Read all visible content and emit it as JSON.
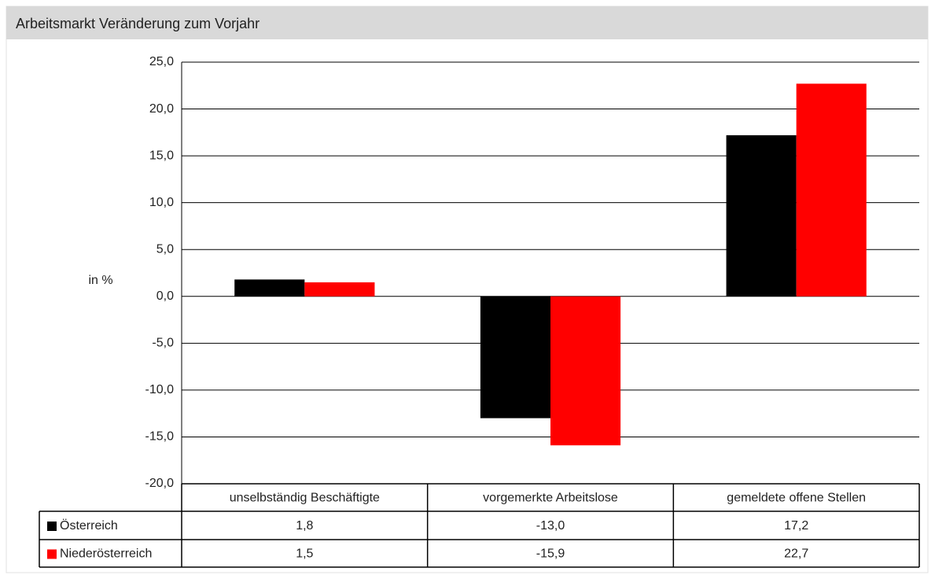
{
  "chart_data": {
    "type": "bar",
    "title": "Arbeitsmarkt Veränderung zum Vorjahr",
    "y_label": "in %",
    "categories": [
      "unselbständig Beschäftigte",
      "vorgemerkte Arbeitslose",
      "gemeldete offene Stellen"
    ],
    "series": [
      {
        "name": "Österreich",
        "color": "#000000",
        "values": [
          1.8,
          -13.0,
          17.2
        ],
        "value_labels": [
          "1,8",
          "-13,0",
          "17,2"
        ]
      },
      {
        "name": "Niederösterreich",
        "color": "#ff0000",
        "values": [
          1.5,
          -15.9,
          22.7
        ],
        "value_labels": [
          "1,5",
          "-15,9",
          "22,7"
        ]
      }
    ],
    "ylim": [
      -20,
      25
    ],
    "yticks": [
      {
        "value": -20,
        "label": "-20,0"
      },
      {
        "value": -15,
        "label": "-15,0"
      },
      {
        "value": -10,
        "label": "-10,0"
      },
      {
        "value": -5,
        "label": "-5,0"
      },
      {
        "value": 0,
        "label": "0,0"
      },
      {
        "value": 5,
        "label": "5,0"
      },
      {
        "value": 10,
        "label": "10,0"
      },
      {
        "value": 15,
        "label": "15,0"
      },
      {
        "value": 20,
        "label": "20,0"
      },
      {
        "value": 25,
        "label": "25,0"
      }
    ],
    "grid": true
  }
}
